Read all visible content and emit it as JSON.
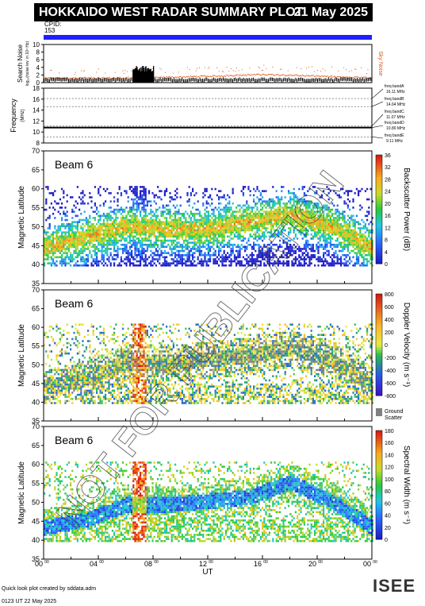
{
  "header": {
    "title": "HOKKAIDO WEST RADAR SUMMARY PLOT",
    "date": "21 May 2025",
    "cpid_label": "CPID:",
    "cpid_value": "153"
  },
  "footer": {
    "credit": "Quick look plot created by sddata.adm",
    "created": "0123 UT 22 May 2025",
    "logo": "ISEE"
  },
  "colors": {
    "cpid_bar": "#2020ff",
    "noise_sky": "#e05a1a",
    "noise_search": "#000000",
    "ground_scatter": "#808080"
  },
  "chart_data": [
    {
      "type": "line",
      "panel": "noise",
      "ylabel": "Search Noise",
      "ylabel_sub": "log₁₀(noise lev. in 10⁴ Hz)",
      "right_label": "Sky Noise",
      "ylim": [
        0,
        10
      ],
      "yticks": [
        "0",
        "2",
        "4",
        "6",
        "8",
        "10"
      ],
      "series": [
        {
          "name": "Sky Noise",
          "x": [
            0,
            2,
            4,
            6,
            8,
            10,
            12,
            14,
            16,
            18,
            20,
            22,
            24
          ],
          "y": [
            1.3,
            1.3,
            1.3,
            1.35,
            1.45,
            1.6,
            1.8,
            2.0,
            2.2,
            2.1,
            1.8,
            1.5,
            1.4
          ]
        },
        {
          "name": "Search Noise",
          "x": [
            6.5,
            6.7,
            7.0,
            7.3,
            7.6,
            7.9,
            8.0
          ],
          "y": [
            3.8,
            4.2,
            3.6,
            4.4,
            3.9,
            4.1,
            2.0
          ]
        }
      ]
    },
    {
      "type": "line",
      "panel": "frequency",
      "ylabel": "Frequency",
      "yunit": "(MHz)",
      "ylim": [
        8,
        18
      ],
      "yticks": [
        "8",
        "10",
        "12",
        "14",
        "16",
        "18"
      ],
      "bands": [
        {
          "label": "freq bandA",
          "value": "16.11 MHz",
          "mhz": 16.11
        },
        {
          "label": "freq bandB",
          "value": "14.64 MHz",
          "mhz": 14.64
        },
        {
          "label": "freq bandC",
          "value": "11.07 MHz",
          "mhz": 11.07
        },
        {
          "label": "freq bandD",
          "value": "10.80 MHz",
          "mhz": 10.8
        },
        {
          "label": "freq bandE",
          "value": "9.11 MHz",
          "mhz": 9.11
        }
      ],
      "series": [
        {
          "name": "operating frequency",
          "x": [
            0,
            24
          ],
          "y": [
            10.8,
            10.8
          ]
        }
      ]
    },
    {
      "type": "heatmap",
      "panel": "power",
      "beam_label": "Beam  6",
      "ylabel": "Magnetic Latitude",
      "ylim": [
        35,
        70
      ],
      "yticks": [
        "35",
        "40",
        "45",
        "50",
        "55",
        "60",
        "65",
        "70"
      ],
      "colorbar_label": "Backscatter Power (dB)",
      "colorbar_ticks": [
        "0",
        "4",
        "8",
        "12",
        "16",
        "20",
        "24",
        "28",
        "32",
        "36"
      ],
      "band": {
        "x": [
          0,
          3,
          6,
          9,
          12,
          15,
          18,
          21,
          24
        ],
        "center": [
          44,
          47,
          50,
          49,
          49,
          51,
          53,
          50,
          44
        ]
      }
    },
    {
      "type": "heatmap",
      "panel": "velocity",
      "beam_label": "Beam  6",
      "ylabel": "Magnetic Latitude",
      "ylim": [
        35,
        70
      ],
      "yticks": [
        "35",
        "40",
        "45",
        "50",
        "55",
        "60",
        "65",
        "70"
      ],
      "colorbar_label": "Doppler Velocity (m s⁻¹)",
      "colorbar_ticks": [
        "-800",
        "-600",
        "-400",
        "-200",
        "0",
        "200",
        "400",
        "600",
        "800"
      ],
      "ground_label": "Ground Scatter",
      "band": {
        "x": [
          0,
          3,
          6,
          9,
          12,
          15,
          18,
          21,
          24
        ],
        "center": [
          43,
          46,
          50,
          50,
          51,
          52,
          54,
          51,
          44
        ]
      }
    },
    {
      "type": "heatmap",
      "panel": "width",
      "beam_label": "Beam  6",
      "ylabel": "Magnetic Latitude",
      "ylim": [
        35,
        70
      ],
      "yticks": [
        "35",
        "40",
        "45",
        "50",
        "55",
        "60",
        "65",
        "70"
      ],
      "colorbar_label": "Spectral Width (m s⁻¹)",
      "colorbar_ticks": [
        "0",
        "20",
        "40",
        "60",
        "80",
        "100",
        "120",
        "140",
        "160",
        "180"
      ],
      "band": {
        "x": [
          0,
          3,
          6,
          9,
          12,
          15,
          18,
          21,
          24
        ],
        "center": [
          43,
          45,
          49,
          49,
          50,
          51,
          55,
          50,
          43
        ]
      }
    }
  ],
  "xaxis": {
    "label": "UT",
    "ticks": [
      {
        "h": "00",
        "m": "00"
      },
      {
        "h": "04",
        "m": "00"
      },
      {
        "h": "08",
        "m": "00"
      },
      {
        "h": "12",
        "m": "00"
      },
      {
        "h": "16",
        "m": "00"
      },
      {
        "h": "20",
        "m": "00"
      },
      {
        "h": "00",
        "m": "00"
      }
    ]
  },
  "watermark": "NOT FOR PUBLICATION"
}
